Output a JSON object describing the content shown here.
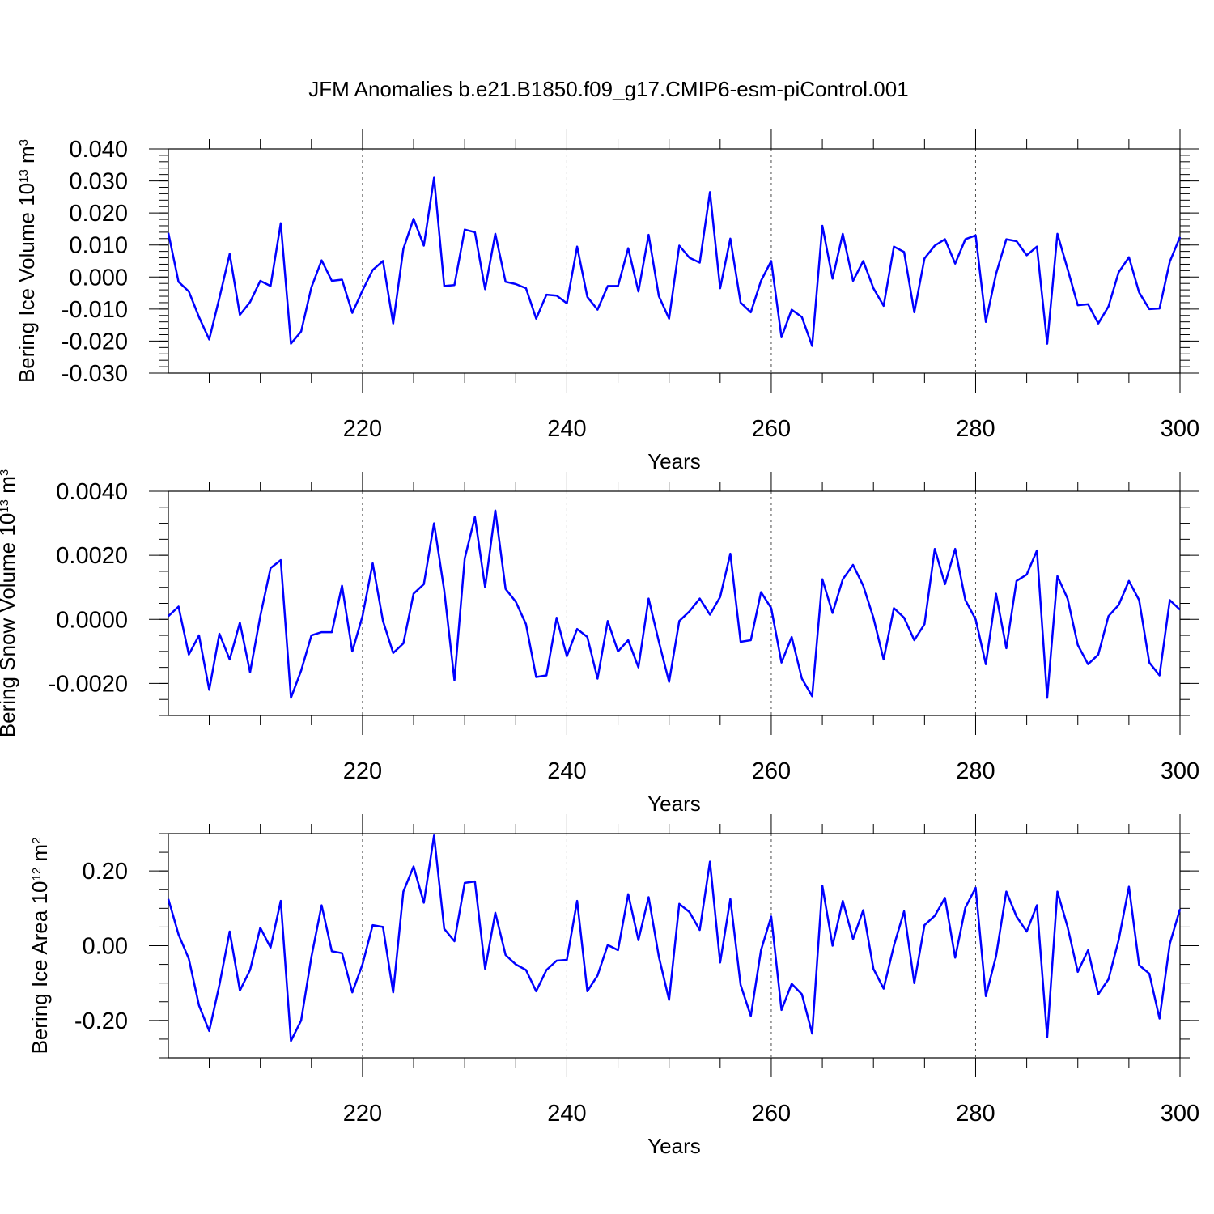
{
  "title": "JFM Anomalies b.e21.B1850.f09_g17.CMIP6-esm-piControl.001",
  "line_color": "#0000ff",
  "chart_data": [
    {
      "type": "line",
      "ylabel": "Bering Ice Volume 10",
      "ylabel_sup": "13",
      "ylabel_unit": " m",
      "ylabel_unit_sup": "3",
      "xlabel": "Years",
      "xlim": [
        201,
        300
      ],
      "ylim": [
        -0.03,
        0.04
      ],
      "x_ticks": [
        220,
        240,
        260,
        280,
        300
      ],
      "x_tick_labels": [
        "220",
        "240",
        "260",
        "280",
        "300"
      ],
      "y_ticks": [
        -0.03,
        -0.02,
        -0.01,
        0.0,
        0.01,
        0.02,
        0.03,
        0.04
      ],
      "y_tick_labels": [
        "-0.030",
        "-0.020",
        "-0.010",
        "0.000",
        "0.010",
        "0.020",
        "0.030",
        "0.040"
      ],
      "y_minor_step": 0.002,
      "grid": "vertical dashed at major x ticks",
      "x_start": 201,
      "values": [
        0.0138,
        -0.0015,
        -0.0045,
        -0.0125,
        -0.0195,
        -0.0065,
        0.0072,
        -0.0118,
        -0.0078,
        -0.0012,
        -0.0028,
        0.0168,
        -0.0208,
        -0.017,
        -0.0032,
        0.0052,
        -0.0012,
        -0.0008,
        -0.0112,
        -0.0042,
        0.0022,
        0.005,
        -0.0145,
        0.0088,
        0.0182,
        0.0098,
        0.031,
        -0.0028,
        -0.0025,
        0.0148,
        0.014,
        -0.0038,
        0.0135,
        -0.0015,
        -0.0022,
        -0.0035,
        -0.013,
        -0.0055,
        -0.0058,
        -0.0082,
        0.0095,
        -0.0062,
        -0.0102,
        -0.0028,
        -0.0028,
        0.009,
        -0.0045,
        0.0132,
        -0.006,
        -0.013,
        0.0098,
        0.006,
        0.0045,
        0.0265,
        -0.0035,
        0.012,
        -0.008,
        -0.011,
        -0.0012,
        0.005,
        -0.0188,
        -0.0102,
        -0.0125,
        -0.0215,
        0.016,
        -0.0005,
        0.0135,
        -0.0012,
        0.005,
        -0.0035,
        -0.009,
        0.0095,
        0.0078,
        -0.011,
        0.0058,
        0.0098,
        0.0118,
        0.0042,
        0.0118,
        0.013,
        -0.014,
        0.001,
        0.0118,
        0.0112,
        0.0068,
        0.0095,
        -0.0208,
        0.0135,
        0.0025,
        -0.0088,
        -0.0085,
        -0.0145,
        -0.0092,
        0.0015,
        0.0062,
        -0.0048,
        -0.01,
        -0.0098,
        0.0048,
        0.0125
      ]
    },
    {
      "type": "line",
      "ylabel": "Bering Snow Volume 10",
      "ylabel_sup": "13",
      "ylabel_unit": " m",
      "ylabel_unit_sup": "3",
      "xlabel": "Years",
      "xlim": [
        201,
        300
      ],
      "ylim": [
        -0.003,
        0.004
      ],
      "x_ticks": [
        220,
        240,
        260,
        280,
        300
      ],
      "x_tick_labels": [
        "220",
        "240",
        "260",
        "280",
        "300"
      ],
      "y_ticks": [
        -0.002,
        0.0,
        0.002,
        0.004
      ],
      "y_tick_labels": [
        "-0.0020",
        "0.0000",
        "0.0020",
        "0.0040"
      ],
      "y_minor_step": 0.0005,
      "grid": "vertical dashed at major x ticks",
      "x_start": 201,
      "values": [
        0.0001,
        0.0004,
        -0.0011,
        -0.0005,
        -0.0022,
        -0.00045,
        -0.00125,
        -0.0001,
        -0.00165,
        0.0001,
        0.0016,
        0.00185,
        -0.00245,
        -0.0016,
        -0.0005,
        -0.0004,
        -0.0004,
        0.00105,
        -0.001,
        0.0001,
        0.00175,
        -5e-05,
        -0.00105,
        -0.00075,
        0.0008,
        0.0011,
        0.003,
        0.0009,
        -0.0019,
        0.0019,
        0.0032,
        0.001,
        0.0034,
        0.00095,
        0.00055,
        -0.00015,
        -0.0018,
        -0.00175,
        5e-05,
        -0.00115,
        -0.0003,
        -0.00055,
        -0.00185,
        -5e-05,
        -0.001,
        -0.00065,
        -0.0015,
        0.00065,
        -0.0007,
        -0.00195,
        -5e-05,
        0.00025,
        0.00065,
        0.00015,
        0.0007,
        0.00205,
        -0.0007,
        -0.00065,
        0.00085,
        0.00035,
        -0.00135,
        -0.00055,
        -0.00185,
        -0.0024,
        0.00125,
        0.0002,
        0.00125,
        0.0017,
        0.00105,
        5e-05,
        -0.00125,
        0.00035,
        5e-05,
        -0.00065,
        -0.00015,
        0.0022,
        0.0011,
        0.0022,
        0.0006,
        0.0,
        -0.0014,
        0.0008,
        -0.0009,
        0.0012,
        0.0014,
        0.00215,
        -0.00245,
        0.00135,
        0.00065,
        -0.0008,
        -0.0014,
        -0.0011,
        0.0001,
        0.00045,
        0.0012,
        0.0006,
        -0.00135,
        -0.00175,
        0.0006,
        0.0003
      ]
    },
    {
      "type": "line",
      "ylabel": "Bering Ice Area 10",
      "ylabel_sup": "12",
      "ylabel_unit": " m",
      "ylabel_unit_sup": "2",
      "xlabel": "Years",
      "xlim": [
        201,
        300
      ],
      "ylim": [
        -0.3,
        0.3
      ],
      "x_ticks": [
        220,
        240,
        260,
        280,
        300
      ],
      "x_tick_labels": [
        "220",
        "240",
        "260",
        "280",
        "300"
      ],
      "y_ticks": [
        -0.2,
        0.0,
        0.2
      ],
      "y_tick_labels": [
        "-0.20",
        "0.00",
        "0.20"
      ],
      "y_minor_step": 0.05,
      "grid": "vertical dashed at major x ticks",
      "x_start": 201,
      "values": [
        0.125,
        0.03,
        -0.035,
        -0.16,
        -0.228,
        -0.105,
        0.038,
        -0.12,
        -0.065,
        0.048,
        -0.005,
        0.12,
        -0.255,
        -0.2,
        -0.03,
        0.108,
        -0.015,
        -0.02,
        -0.125,
        -0.05,
        0.055,
        0.05,
        -0.125,
        0.145,
        0.212,
        0.115,
        0.295,
        0.045,
        0.012,
        0.168,
        0.172,
        -0.062,
        0.088,
        -0.025,
        -0.05,
        -0.065,
        -0.122,
        -0.065,
        -0.04,
        -0.038,
        0.12,
        -0.122,
        -0.08,
        0.002,
        -0.012,
        0.138,
        0.015,
        0.13,
        -0.03,
        -0.145,
        0.112,
        0.09,
        0.042,
        0.225,
        -0.045,
        0.125,
        -0.105,
        -0.188,
        -0.012,
        0.078,
        -0.172,
        -0.102,
        -0.13,
        -0.235,
        0.16,
        0.0,
        0.12,
        0.018,
        0.095,
        -0.062,
        -0.115,
        0.0,
        0.092,
        -0.1,
        0.055,
        0.08,
        0.128,
        -0.032,
        0.102,
        0.155,
        -0.135,
        -0.028,
        0.145,
        0.078,
        0.038,
        0.108,
        -0.245,
        0.145,
        0.05,
        -0.07,
        -0.012,
        -0.13,
        -0.09,
        0.015,
        0.158,
        -0.052,
        -0.075,
        -0.195,
        0.005,
        0.098
      ]
    }
  ]
}
